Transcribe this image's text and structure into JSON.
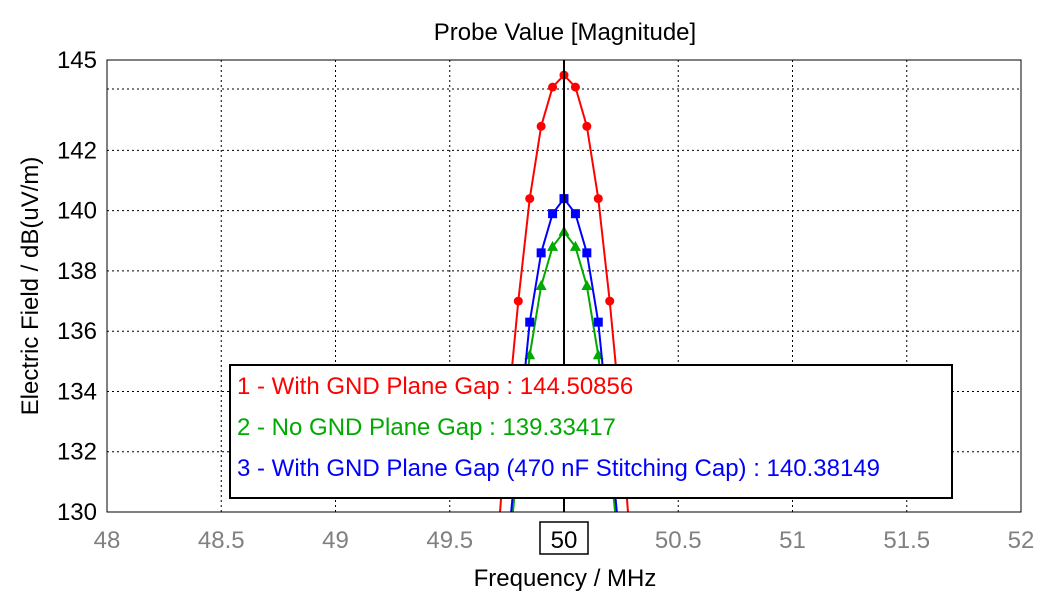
{
  "chart_data": {
    "type": "line",
    "title": "Probe Value [Magnitude]",
    "xlabel": "Frequency / MHz",
    "ylabel": "Electric Field / dB(uV/m)",
    "xlim": [
      48,
      52
    ],
    "ylim": [
      130,
      145
    ],
    "x_ticks": [
      "48",
      "48.5",
      "49",
      "49.5",
      "50",
      "50.5",
      "51",
      "51.5",
      "52"
    ],
    "y_ticks": [
      "130",
      "132",
      "134",
      "136",
      "138",
      "140",
      "142",
      "145"
    ],
    "highlighted_x_tick": "50",
    "cursor_x": 50,
    "grid": true,
    "legend_position": "bottom-center",
    "series": [
      {
        "name": "1 - With GND Plane Gap : 144.50856",
        "color": "#ff0000",
        "marker": "circle",
        "x": [
          49.7,
          49.75,
          49.8,
          49.85,
          49.9,
          49.95,
          50.0,
          50.05,
          50.1,
          50.15,
          50.2,
          50.25,
          50.3
        ],
        "y": [
          128.0,
          133.0,
          137.0,
          140.4,
          142.8,
          144.1,
          144.5,
          144.1,
          142.8,
          140.4,
          137.0,
          133.0,
          128.0
        ]
      },
      {
        "name": "2 - No GND Plane Gap : 139.33417",
        "color": "#00aa00",
        "marker": "triangle",
        "x": [
          49.75,
          49.8,
          49.85,
          49.9,
          49.95,
          50.0,
          50.05,
          50.1,
          50.15,
          50.2,
          50.25
        ],
        "y": [
          128.0,
          131.8,
          135.2,
          137.5,
          138.8,
          139.3,
          138.8,
          137.5,
          135.2,
          131.8,
          128.0
        ]
      },
      {
        "name": "3 - With GND Plane Gap (470 nF Stitching Cap) : 140.38149",
        "color": "#0000ff",
        "marker": "square",
        "x": [
          49.75,
          49.8,
          49.85,
          49.9,
          49.95,
          50.0,
          50.05,
          50.1,
          50.15,
          50.2,
          50.25
        ],
        "y": [
          128.5,
          132.5,
          136.3,
          138.6,
          139.9,
          140.4,
          139.9,
          138.6,
          136.3,
          132.5,
          128.5
        ]
      }
    ]
  }
}
